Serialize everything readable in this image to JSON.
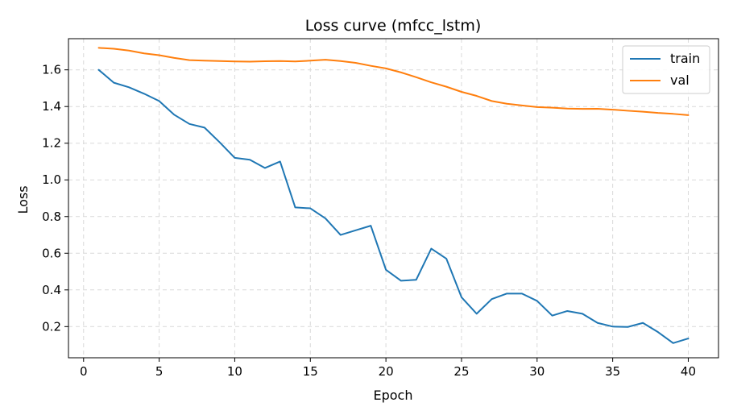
{
  "chart_data": {
    "type": "line",
    "title": "Loss curve (mfcc_lstm)",
    "xlabel": "Epoch",
    "ylabel": "Loss",
    "xlim": [
      -1,
      42
    ],
    "ylim": [
      0.03,
      1.77
    ],
    "xticks": [
      0,
      5,
      10,
      15,
      20,
      25,
      30,
      35,
      40
    ],
    "yticks": [
      0.2,
      0.4,
      0.6,
      0.8,
      1.0,
      1.2,
      1.4,
      1.6
    ],
    "ytick_labels": [
      "0.2",
      "0.4",
      "0.6",
      "0.8",
      "1.0",
      "1.2",
      "1.4",
      "1.6"
    ],
    "grid": true,
    "legend_position": "top-right",
    "x": [
      1,
      2,
      3,
      4,
      5,
      6,
      7,
      8,
      9,
      10,
      11,
      12,
      13,
      14,
      15,
      16,
      17,
      18,
      19,
      20,
      21,
      22,
      23,
      24,
      25,
      26,
      27,
      28,
      29,
      30,
      31,
      32,
      33,
      34,
      35,
      36,
      37,
      38,
      39,
      40
    ],
    "series": [
      {
        "name": "train",
        "color": "#1f77b4",
        "values": [
          1.6,
          1.53,
          1.505,
          1.47,
          1.43,
          1.355,
          1.305,
          1.285,
          1.205,
          1.12,
          1.11,
          1.065,
          1.1,
          0.85,
          0.845,
          0.79,
          0.7,
          0.725,
          0.75,
          0.51,
          0.45,
          0.455,
          0.625,
          0.57,
          0.36,
          0.27,
          0.35,
          0.38,
          0.38,
          0.34,
          0.26,
          0.285,
          0.27,
          0.22,
          0.2,
          0.198,
          0.22,
          0.17,
          0.11,
          0.135
        ]
      },
      {
        "name": "val",
        "color": "#ff7f0e",
        "values": [
          1.72,
          1.715,
          1.705,
          1.69,
          1.68,
          1.665,
          1.653,
          1.65,
          1.648,
          1.646,
          1.645,
          1.647,
          1.648,
          1.646,
          1.65,
          1.655,
          1.648,
          1.638,
          1.622,
          1.608,
          1.586,
          1.56,
          1.532,
          1.508,
          1.48,
          1.458,
          1.43,
          1.415,
          1.406,
          1.397,
          1.394,
          1.389,
          1.387,
          1.388,
          1.383,
          1.377,
          1.372,
          1.365,
          1.36,
          1.353
        ]
      }
    ]
  }
}
